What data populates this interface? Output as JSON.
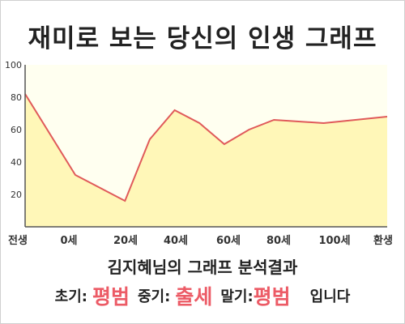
{
  "title": "재미로 보는 당신의 인생 그래프",
  "subtitle": "김지혜님의 그래프 분석결과",
  "summary": {
    "early_label": "초기:",
    "early_value": "평범",
    "middle_label": "중기:",
    "middle_value": "출세",
    "late_label": "말기:",
    "late_value": "평범",
    "ending": "입니다"
  },
  "colors": {
    "line": "#e05a5a",
    "fill": "#fff7b8",
    "plot_background": "#fffff0",
    "highlight_text": "#ec5b66"
  },
  "chart_data": {
    "type": "area",
    "x_labels": [
      "전생",
      "0세",
      "20세",
      "40세",
      "60세",
      "80세",
      "100세",
      "환생"
    ],
    "y_ticks": [
      20,
      40,
      60,
      80,
      100
    ],
    "ylim": [
      0,
      100
    ],
    "grid": false,
    "points": [
      {
        "age": "전생",
        "value": 82
      },
      {
        "age": 0,
        "value": 32
      },
      {
        "age": 20,
        "value": 16
      },
      {
        "age": 30,
        "value": 54
      },
      {
        "age": 40,
        "value": 72
      },
      {
        "age": 50,
        "value": 64
      },
      {
        "age": 60,
        "value": 51
      },
      {
        "age": 70,
        "value": 60
      },
      {
        "age": 80,
        "value": 66
      },
      {
        "age": 100,
        "value": 64
      },
      {
        "age": "환생",
        "value": 68
      }
    ]
  }
}
